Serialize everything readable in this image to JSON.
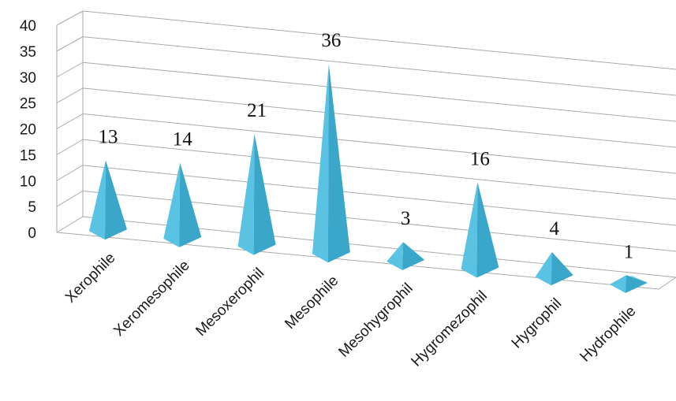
{
  "chart_data": {
    "type": "bar",
    "style": "3d-pyramid",
    "title": "",
    "xlabel": "",
    "ylabel": "",
    "categories": [
      "Xerophile",
      "Xeromesophile",
      "Mesoxerophil",
      "Mesophile",
      "Mesohygrophil",
      "Hygromezophil",
      "Hygrophil",
      "Hydrophile"
    ],
    "values": [
      13,
      14,
      21,
      36,
      3,
      16,
      4,
      1
    ],
    "data_labels": [
      "13",
      "14",
      "21",
      "36",
      "3",
      "16",
      "4",
      "1"
    ],
    "ylim": [
      0,
      40
    ],
    "y_ticks": [
      "0",
      "5",
      "10",
      "15",
      "20",
      "25",
      "30",
      "35",
      "40"
    ],
    "grid": true,
    "legend": "none",
    "colors": {
      "front_face": "#5ac3e3",
      "side_face": "#3aa6c9",
      "top_face": "#8fdaf0",
      "grid": "#aaaaaa"
    }
  }
}
